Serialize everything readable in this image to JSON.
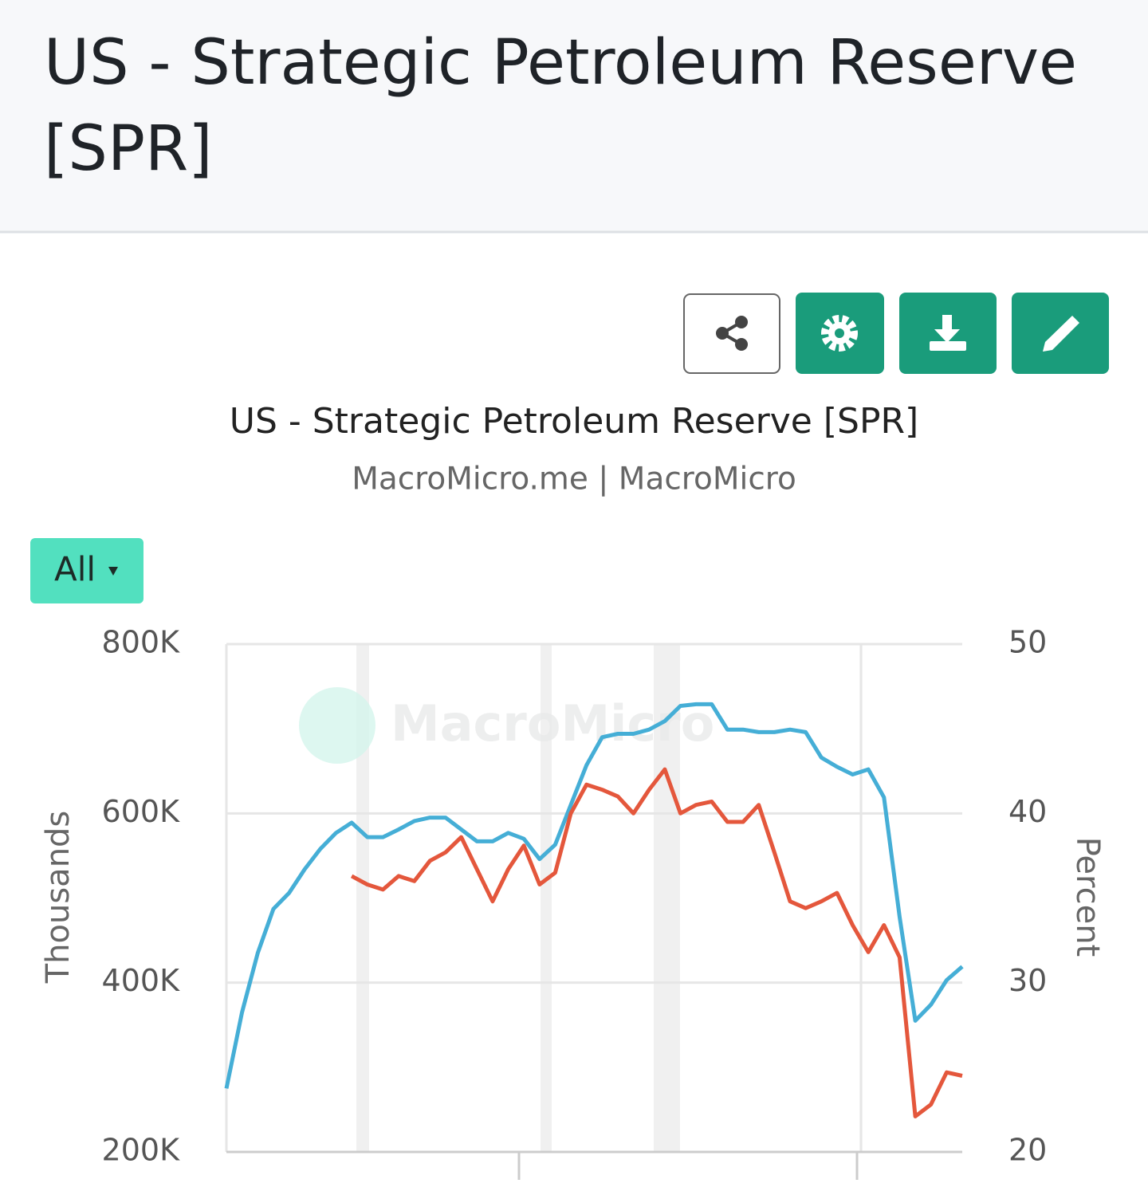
{
  "header": {
    "title": "US - Strategic Petroleum Reserve [SPR]"
  },
  "range_button": {
    "label": "All"
  },
  "chart_data": {
    "type": "line",
    "title": "US - Strategic Petroleum Reserve [SPR]",
    "subtitle": "MacroMicro.me | MacroMicro",
    "watermark": "MacroMicro",
    "y_label": "Thousands",
    "y2_label": "Percent",
    "ylim": [
      200000,
      800000
    ],
    "yticks": [
      {
        "value": 200000,
        "label": "200K"
      },
      {
        "value": 400000,
        "label": "400K"
      },
      {
        "value": 600000,
        "label": "600K"
      },
      {
        "value": 800000,
        "label": "800K"
      }
    ],
    "y2lim": [
      20,
      50
    ],
    "y2ticks": [
      20,
      30,
      40,
      50
    ],
    "grid": true,
    "series": [
      {
        "color": "#45aed6",
        "axis": "y",
        "values": [
          275000,
          365000,
          435000,
          487000,
          506000,
          534000,
          558000,
          577000,
          589000,
          572000,
          572000,
          581000,
          591000,
          595000,
          595000,
          581000,
          567000,
          567000,
          577000,
          570000,
          546000,
          563000,
          610000,
          657000,
          690000,
          694000,
          694000,
          699000,
          709000,
          727000,
          729000,
          729000,
          699000,
          699000,
          696000,
          696000,
          699000,
          696000,
          666000,
          655000,
          646000,
          652000,
          619000,
          478000,
          355000,
          374000,
          403000,
          419000
        ]
      },
      {
        "color": "#e4573c",
        "axis": "y2",
        "values": [
          null,
          null,
          null,
          null,
          null,
          null,
          null,
          null,
          36.3,
          35.8,
          35.5,
          36.3,
          36.0,
          37.2,
          37.7,
          38.6,
          36.7,
          34.8,
          36.7,
          38.1,
          35.8,
          36.5,
          40.0,
          41.7,
          41.4,
          41.0,
          40.0,
          41.4,
          42.6,
          40.0,
          40.5,
          40.7,
          39.5,
          39.5,
          40.5,
          37.7,
          34.8,
          34.4,
          34.8,
          35.3,
          33.4,
          31.8,
          33.4,
          31.5,
          22.1,
          22.8,
          24.7,
          24.5
        ]
      }
    ]
  }
}
